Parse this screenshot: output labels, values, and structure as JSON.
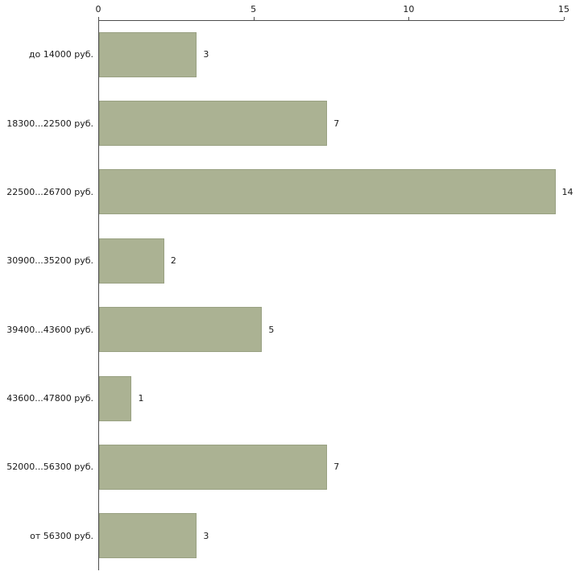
{
  "chart_data": {
    "type": "bar",
    "orientation": "horizontal",
    "title": "",
    "xlabel": "",
    "ylabel": "",
    "categories": [
      "до 14000 руб.",
      "18300...22500 руб.",
      "22500...26700 руб.",
      "30900...35200 руб.",
      "39400...43600 руб.",
      "43600...47800 руб.",
      "52000...56300 руб.",
      "от 56300 руб."
    ],
    "values": [
      3,
      7,
      14,
      2,
      5,
      1,
      7,
      3
    ],
    "value_labels": [
      "3",
      "7",
      "14",
      "2",
      "5",
      "1",
      "7",
      "3"
    ],
    "xlim": [
      0,
      15
    ],
    "xticks": [
      0,
      5,
      10,
      15
    ],
    "grid": false,
    "legend": false,
    "colors": {
      "bar_fill": "#abb293",
      "bar_border": "#99a182",
      "axis": "#4d4d4d",
      "text": "#1a1a1a",
      "background": "#ffffff"
    }
  }
}
